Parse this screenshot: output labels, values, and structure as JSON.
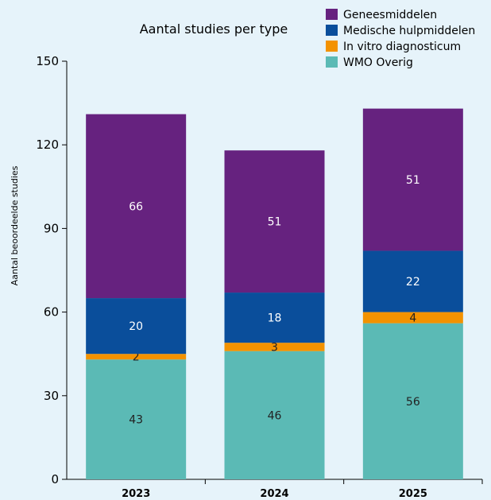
{
  "chart_data": {
    "type": "bar",
    "stacked": true,
    "title": "Aantal studies per type",
    "xlabel": "",
    "ylabel": "Aantal beoordeelde studies",
    "categories": [
      "2023",
      "2024",
      "2025"
    ],
    "ylim": [
      0,
      150
    ],
    "yticks": [
      0,
      30,
      60,
      90,
      120,
      150
    ],
    "grid": false,
    "legend_position": "top-right",
    "series": [
      {
        "name": "WMO Overig",
        "values": [
          43,
          46,
          56
        ],
        "color": "#5bbab5",
        "label_color": "#222222"
      },
      {
        "name": "In vitro diagnosticum",
        "values": [
          2,
          3,
          4
        ],
        "color": "#f39200",
        "label_color": "#222222"
      },
      {
        "name": "Medische hulpmiddelen",
        "values": [
          20,
          18,
          22
        ],
        "color": "#0a4e9b",
        "label_color": "#ffffff"
      },
      {
        "name": "Geneesmiddelen",
        "values": [
          66,
          51,
          51
        ],
        "color": "#66227f",
        "label_color": "#ffffff"
      }
    ],
    "legend_order": [
      "Geneesmiddelen",
      "Medische hulpmiddelen",
      "In vitro diagnosticum",
      "WMO Overig"
    ]
  }
}
